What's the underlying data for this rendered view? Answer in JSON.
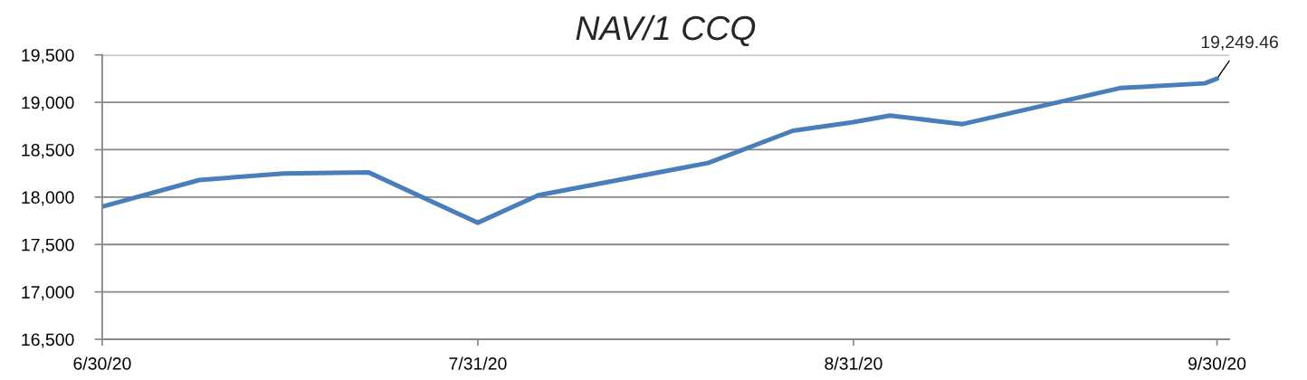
{
  "chart_data": {
    "type": "line",
    "title": "NAV/1 CCQ",
    "x": [
      "2020-06-30",
      "2020-07-08",
      "2020-07-15",
      "2020-07-22",
      "2020-07-31",
      "2020-08-05",
      "2020-08-19",
      "2020-08-26",
      "2020-08-31",
      "2020-09-03",
      "2020-09-09",
      "2020-09-22",
      "2020-09-29",
      "2020-09-30"
    ],
    "values": [
      17900,
      18180,
      18250,
      18260,
      17730,
      18020,
      18360,
      18700,
      18790,
      18860,
      18770,
      19150,
      19200,
      19249.46
    ],
    "color": "#4a7ebb",
    "line_style": "solid",
    "xlim": [
      "2020-06-30",
      "2020-10-01"
    ],
    "xticks": [
      {
        "value": "2020-06-30",
        "label": "6/30/20"
      },
      {
        "value": "2020-07-31",
        "label": "7/31/20"
      },
      {
        "value": "2020-08-31",
        "label": "8/31/20"
      },
      {
        "value": "2020-09-30",
        "label": "9/30/20"
      }
    ],
    "ylim": [
      16500,
      19500
    ],
    "yticks": [
      {
        "value": 16500,
        "label": "16,500"
      },
      {
        "value": 17000,
        "label": "17,000"
      },
      {
        "value": 17500,
        "label": "17,500"
      },
      {
        "value": 18000,
        "label": "18,000"
      },
      {
        "value": 18500,
        "label": "18,500"
      },
      {
        "value": 19000,
        "label": "19,000"
      },
      {
        "value": 19500,
        "label": "19,500"
      }
    ],
    "grid": "y",
    "annotations": [
      {
        "text": "19,249.46",
        "x": "2020-09-30",
        "y": 19249.46
      }
    ]
  }
}
